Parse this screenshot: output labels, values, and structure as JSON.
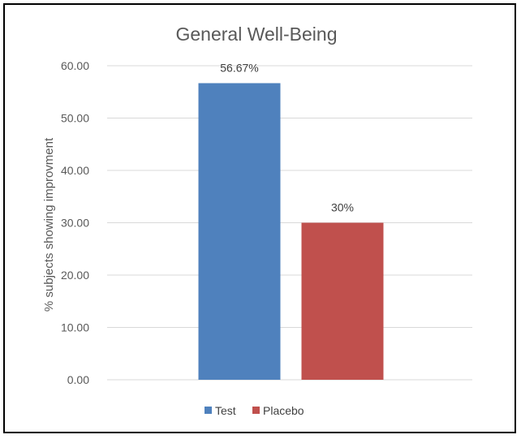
{
  "chart_data": {
    "type": "bar",
    "title": "General Well-Being",
    "xlabel": "",
    "ylabel": "% subjects showing improvment",
    "ylim": [
      0,
      60
    ],
    "yticks": [
      "0.00",
      "10.00",
      "20.00",
      "30.00",
      "40.00",
      "50.00",
      "60.00"
    ],
    "grid": true,
    "legend_position": "bottom",
    "series": [
      {
        "name": "Test",
        "value": 56.67,
        "label": "56.67%",
        "color": "#4f81bd"
      },
      {
        "name": "Placebo",
        "value": 30,
        "label": "30%",
        "color": "#c0504d"
      }
    ]
  }
}
